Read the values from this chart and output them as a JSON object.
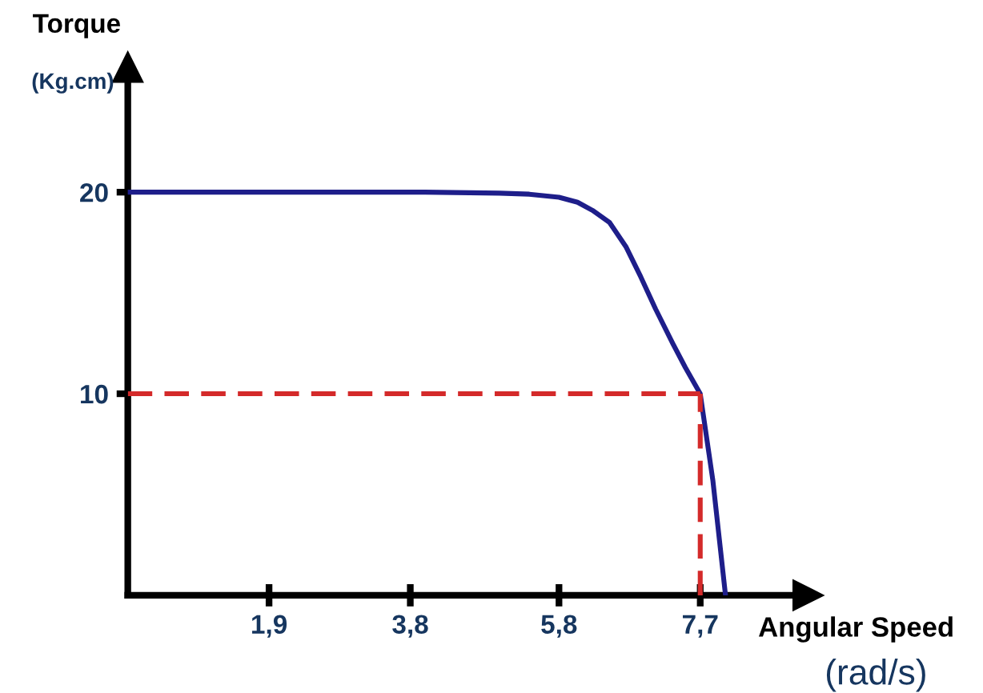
{
  "chart_data": {
    "type": "line",
    "xlabel": "Angular Speed\n(rad/s)",
    "ylabel": "Torque\n(Kg.cm)",
    "xlim": [
      0,
      9.15
    ],
    "ylim": [
      0,
      26.2
    ],
    "xticks": [
      {
        "value": 1.9,
        "label": "1,9"
      },
      {
        "value": 3.8,
        "label": "3,8"
      },
      {
        "value": 5.8,
        "label": "5,8"
      },
      {
        "value": 7.7,
        "label": "7,7"
      }
    ],
    "yticks": [
      10,
      20
    ],
    "grid": false,
    "marker": "none",
    "series": [
      {
        "color": "#1e1e8a",
        "line_style": "solid",
        "x": [
          0,
          2,
          4,
          5,
          5.4,
          5.8,
          6.05,
          6.25,
          6.48,
          6.7,
          6.9,
          7.1,
          7.33,
          7.5,
          7.7,
          7.87,
          8.04
        ],
        "values": [
          20,
          20,
          20,
          19.95,
          19.9,
          19.75,
          19.5,
          19.1,
          18.5,
          17.3,
          15.8,
          14.2,
          12.5,
          11.3,
          10,
          5.7,
          0
        ]
      },
      {
        "color": "#d42a2a",
        "line_style": "dashed",
        "x": [
          0,
          7.7
        ],
        "values": [
          10,
          10
        ]
      },
      {
        "color": "#d42a2a",
        "line_style": "dashed",
        "x": [
          7.7,
          7.7
        ],
        "values": [
          0,
          10
        ]
      }
    ]
  }
}
